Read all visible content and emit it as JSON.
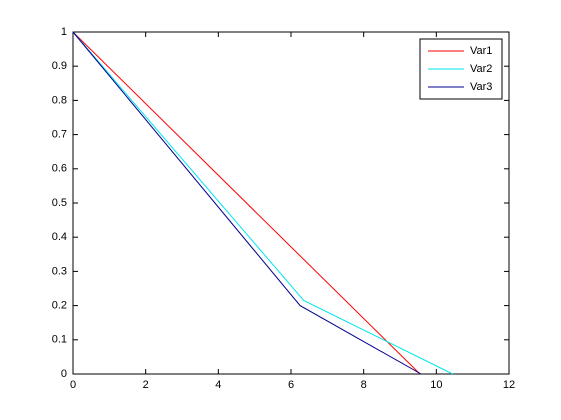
{
  "chart_data": {
    "type": "line",
    "xlim": [
      0,
      12
    ],
    "xticks": [
      0,
      2,
      4,
      6,
      8,
      10,
      12
    ],
    "ylim": [
      0,
      1
    ],
    "yticks": [
      0,
      0.1,
      0.2,
      0.3,
      0.4,
      0.5,
      0.6,
      0.7,
      0.8,
      0.9,
      1
    ],
    "legend": "upper right",
    "series": [
      {
        "name": "Var1",
        "color": "#ff0000",
        "x": [
          0,
          9.55
        ],
        "values": [
          1,
          0
        ]
      },
      {
        "name": "Var2",
        "color": "#00e5ee",
        "x": [
          0,
          6.35,
          10.45
        ],
        "values": [
          1,
          0.215,
          0
        ]
      },
      {
        "name": "Var3",
        "color": "#00008b",
        "x": [
          0,
          6.25,
          9.58
        ],
        "values": [
          1,
          0.2,
          0
        ]
      }
    ]
  }
}
